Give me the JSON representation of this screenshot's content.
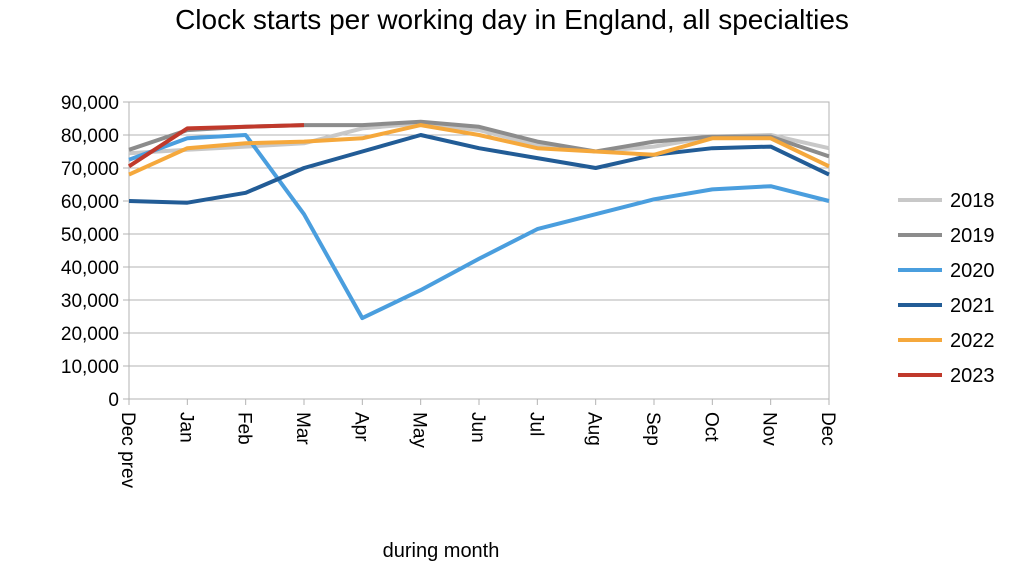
{
  "chart_data": {
    "type": "line",
    "title": "Clock starts per working day in England, all specialties",
    "xlabel": "during  month",
    "ylabel": "",
    "ylim": [
      0,
      90000
    ],
    "yticks": [
      "0",
      "10,000",
      "20,000",
      "30,000",
      "40,000",
      "50,000",
      "60,000",
      "70,000",
      "80,000",
      "90,000"
    ],
    "categories": [
      "Dec prev",
      "Jan",
      "Feb",
      "Mar",
      "Apr",
      "May",
      "Jun",
      "Jul",
      "Aug",
      "Sep",
      "Oct",
      "Nov",
      "Dec"
    ],
    "grid": true,
    "legend_position": "right",
    "series": [
      {
        "name": "2018",
        "color": "#c8c8c8",
        "values": [
          74500,
          75500,
          76500,
          77500,
          82000,
          83500,
          81500,
          77000,
          75000,
          76500,
          79500,
          80000,
          76000
        ]
      },
      {
        "name": "2019",
        "color": "#8c8c8c",
        "values": [
          75500,
          81500,
          82500,
          83000,
          83000,
          84000,
          82500,
          78000,
          75000,
          78000,
          79500,
          79500,
          73500
        ]
      },
      {
        "name": "2020",
        "color": "#4a9ede",
        "values": [
          72500,
          79000,
          80000,
          56000,
          24500,
          33000,
          42500,
          51500,
          56000,
          60500,
          63500,
          64500,
          60000
        ]
      },
      {
        "name": "2021",
        "color": "#225c96",
        "values": [
          60000,
          59500,
          62500,
          70000,
          75000,
          80000,
          76000,
          73000,
          70000,
          74000,
          76000,
          76500,
          68000
        ]
      },
      {
        "name": "2022",
        "color": "#f5a83c",
        "values": [
          68000,
          76000,
          77500,
          78000,
          79000,
          83000,
          80000,
          76000,
          75000,
          74000,
          79000,
          79000,
          70500
        ]
      },
      {
        "name": "2023",
        "color": "#c0392b",
        "values": [
          70500,
          82000,
          82500,
          83000,
          null,
          null,
          null,
          null,
          null,
          null,
          null,
          null,
          null
        ]
      }
    ]
  }
}
